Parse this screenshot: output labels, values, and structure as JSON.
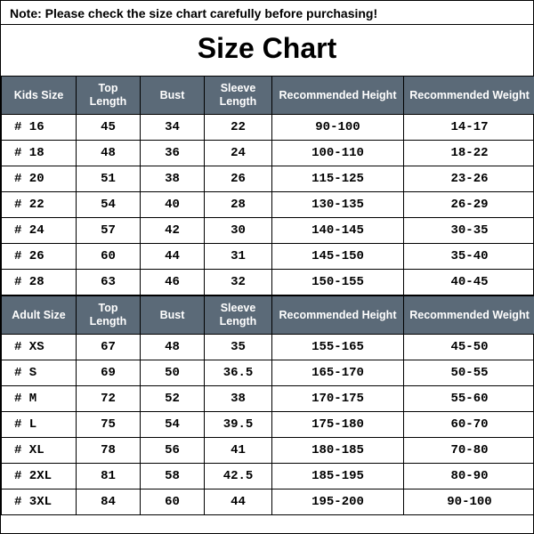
{
  "note": "Note: Please check the size chart carefully before purchasing!",
  "title": "Size Chart",
  "columns": {
    "kids_size": "Kids Size",
    "adult_size": "Adult Size",
    "top_length": "Top Length",
    "bust": "Bust",
    "sleeve_length": "Sleeve Length",
    "rec_height": "Recommended Height",
    "rec_weight": "Recommended Weight"
  },
  "kids": {
    "rows": [
      {
        "size": "# 16",
        "top": "45",
        "bust": "34",
        "sleeve": "22",
        "height": "90-100",
        "weight": "14-17"
      },
      {
        "size": "# 18",
        "top": "48",
        "bust": "36",
        "sleeve": "24",
        "height": "100-110",
        "weight": "18-22"
      },
      {
        "size": "# 20",
        "top": "51",
        "bust": "38",
        "sleeve": "26",
        "height": "115-125",
        "weight": "23-26"
      },
      {
        "size": "# 22",
        "top": "54",
        "bust": "40",
        "sleeve": "28",
        "height": "130-135",
        "weight": "26-29"
      },
      {
        "size": "# 24",
        "top": "57",
        "bust": "42",
        "sleeve": "30",
        "height": "140-145",
        "weight": "30-35"
      },
      {
        "size": "# 26",
        "top": "60",
        "bust": "44",
        "sleeve": "31",
        "height": "145-150",
        "weight": "35-40"
      },
      {
        "size": "# 28",
        "top": "63",
        "bust": "46",
        "sleeve": "32",
        "height": "150-155",
        "weight": "40-45"
      }
    ]
  },
  "adult": {
    "rows": [
      {
        "size": "# XS",
        "top": "67",
        "bust": "48",
        "sleeve": "35",
        "height": "155-165",
        "weight": "45-50"
      },
      {
        "size": "# S",
        "top": "69",
        "bust": "50",
        "sleeve": "36.5",
        "height": "165-170",
        "weight": "50-55"
      },
      {
        "size": "# M",
        "top": "72",
        "bust": "52",
        "sleeve": "38",
        "height": "170-175",
        "weight": "55-60"
      },
      {
        "size": "# L",
        "top": "75",
        "bust": "54",
        "sleeve": "39.5",
        "height": "175-180",
        "weight": "60-70"
      },
      {
        "size": "# XL",
        "top": "78",
        "bust": "56",
        "sleeve": "41",
        "height": "180-185",
        "weight": "70-80"
      },
      {
        "size": "# 2XL",
        "top": "81",
        "bust": "58",
        "sleeve": "42.5",
        "height": "185-195",
        "weight": "80-90"
      },
      {
        "size": "# 3XL",
        "top": "84",
        "bust": "60",
        "sleeve": "44",
        "height": "195-200",
        "weight": "90-100"
      }
    ]
  },
  "style": {
    "header_bg": "#5b6a78",
    "header_fg": "#ffffff",
    "border": "#000000",
    "cell_font": "Courier New",
    "title_fontsize": 32,
    "header_fontsize": 12.5,
    "cell_fontsize": 14
  }
}
